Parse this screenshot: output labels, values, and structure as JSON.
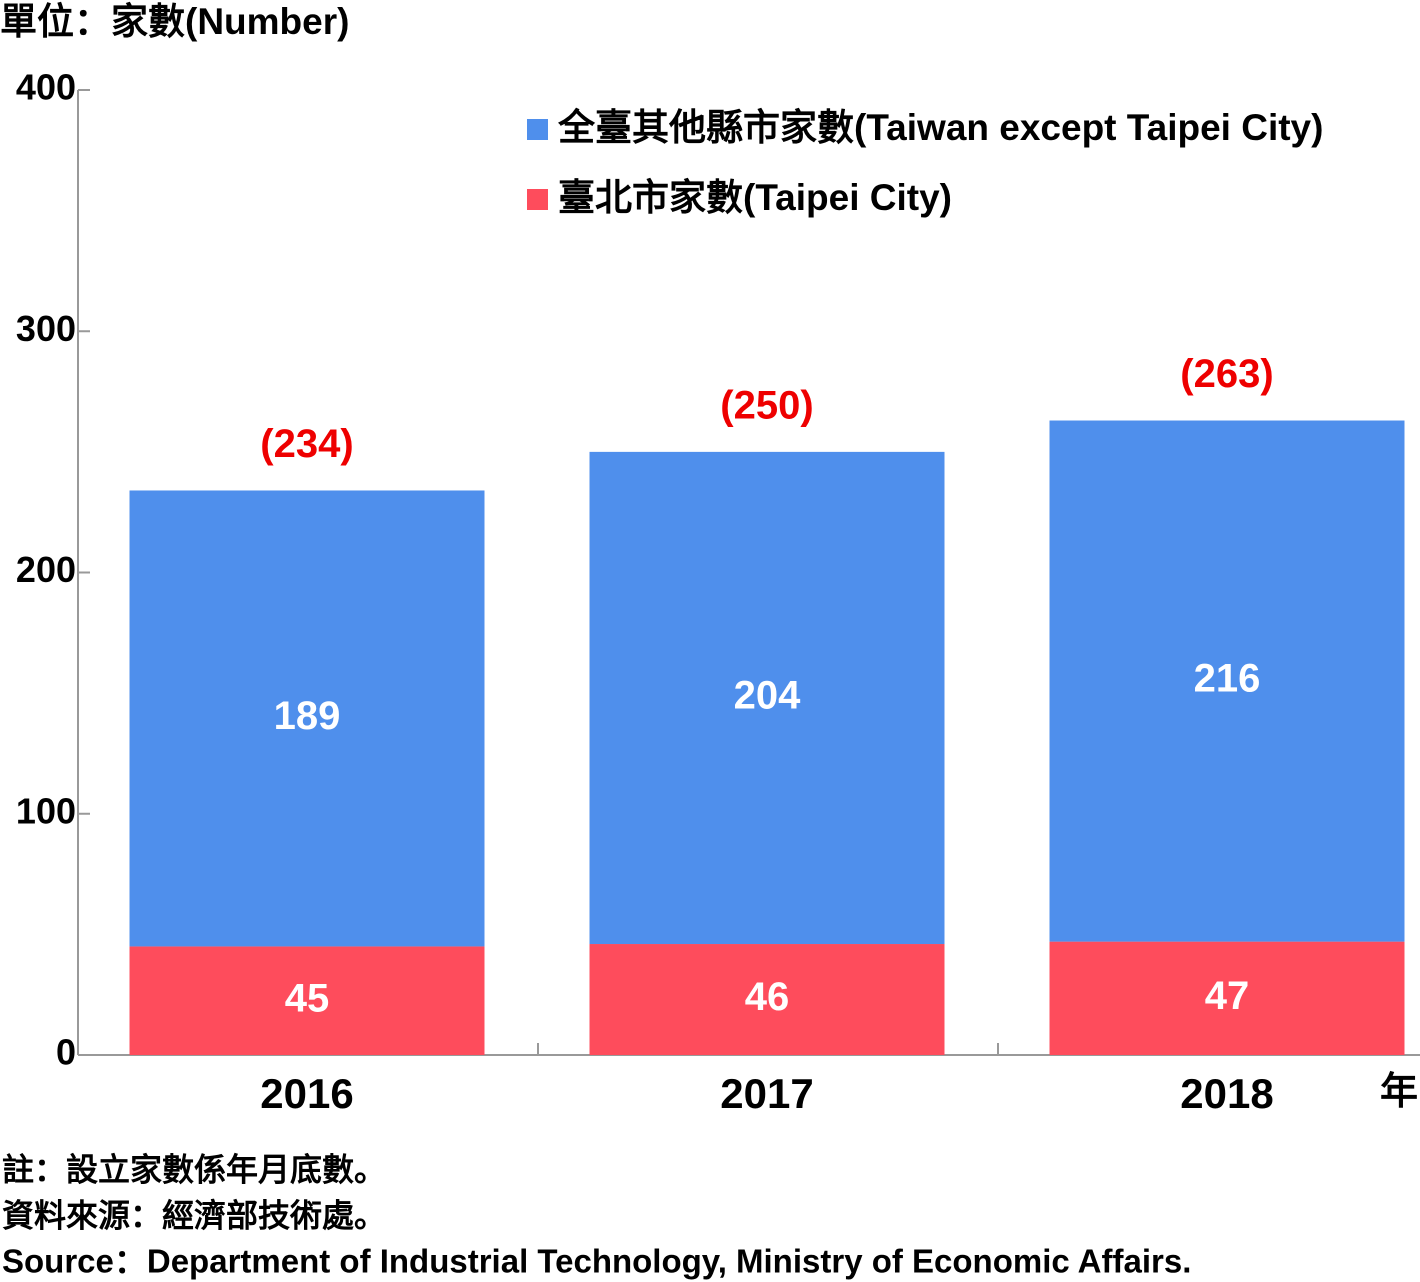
{
  "chart_data": {
    "type": "bar",
    "stacked": true,
    "title": "單位：家數(Number)",
    "x_unit": "年",
    "categories": [
      "2016",
      "2017",
      "2018"
    ],
    "series": [
      {
        "name": "臺北市家數(Taipei City)",
        "color": "#fe4c5c",
        "values": [
          45,
          46,
          47
        ]
      },
      {
        "name": "全臺其他縣市家數(Taiwan except Taipei City)",
        "color": "#4f8fec",
        "values": [
          189,
          204,
          216
        ]
      }
    ],
    "totals": {
      "values": [
        234,
        250,
        263
      ],
      "value_labels": [
        "(234)",
        "(250)",
        "(263)"
      ]
    },
    "ylim": [
      0,
      400
    ],
    "yticks": [
      0,
      100,
      200,
      300,
      400
    ],
    "legend": "upper right",
    "notes": [
      "註：設立家數係年月底數。",
      "資料來源：經濟部技術處。",
      "Source：Department of Industrial Technology, Ministry of Economic Affairs."
    ]
  }
}
